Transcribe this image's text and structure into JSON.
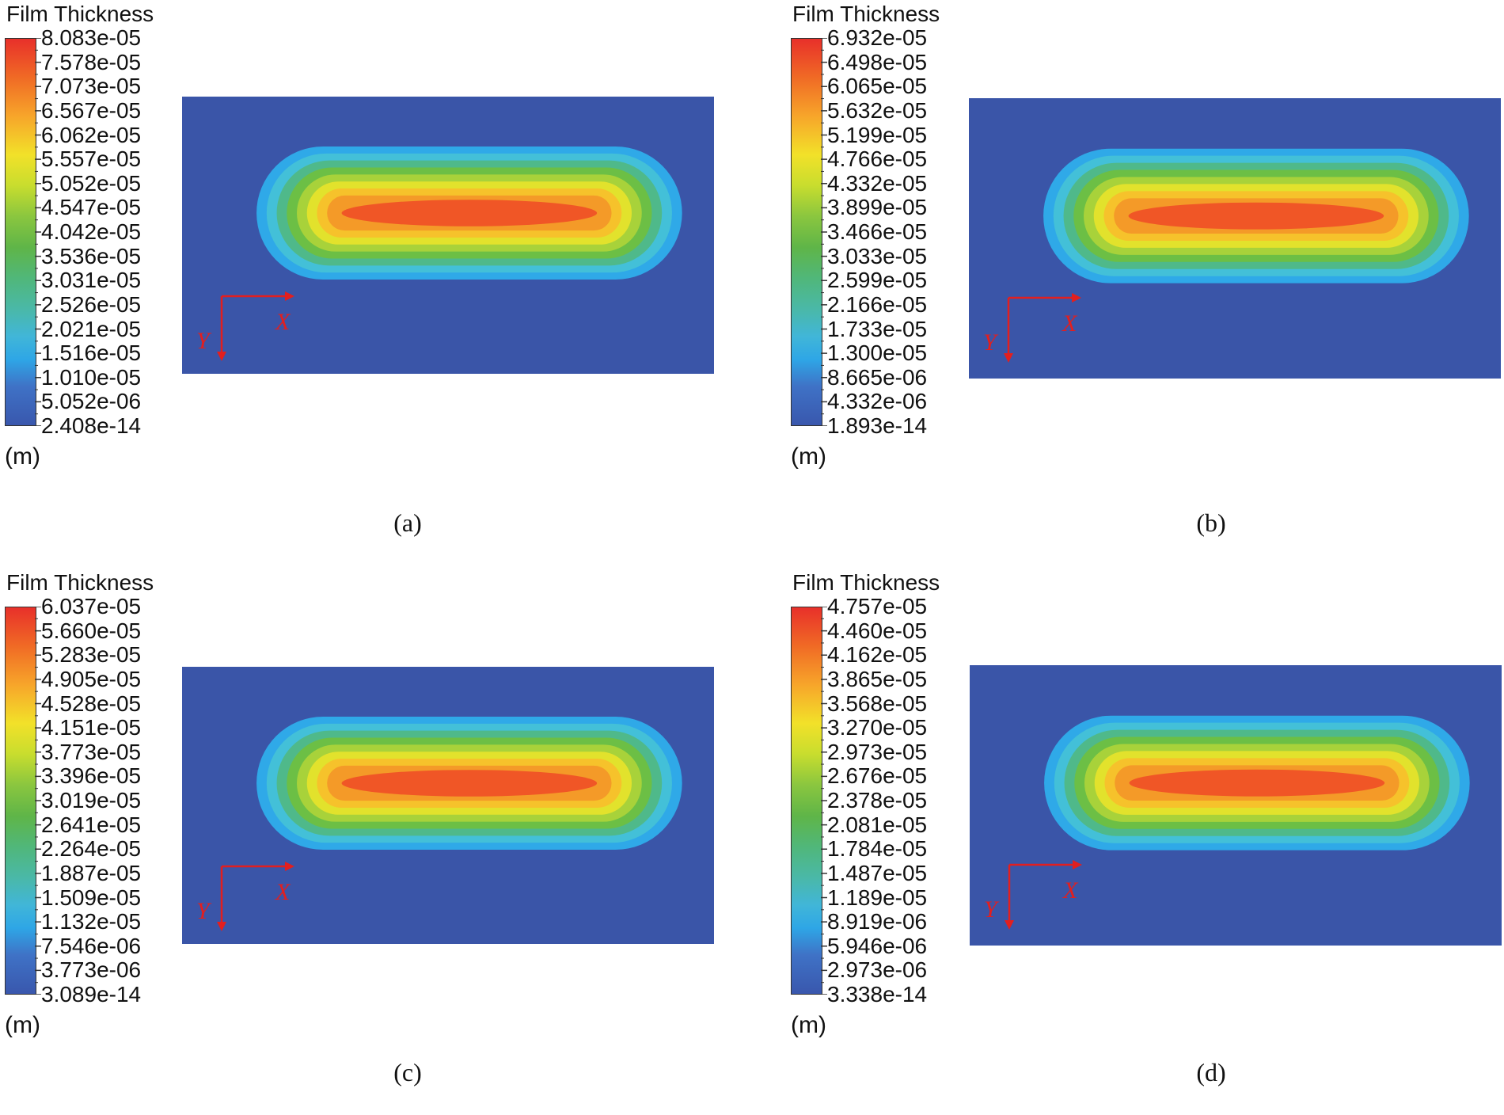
{
  "legend": {
    "title": "Film Thickness",
    "unit": "(m)"
  },
  "axes": {
    "x_label": "X",
    "y_label": "Y",
    "color": "#e21f1f"
  },
  "panels": [
    {
      "caption": "(a)",
      "ticks": [
        "8.083e-05",
        "7.578e-05",
        "7.073e-05",
        "6.567e-05",
        "6.062e-05",
        "5.557e-05",
        "5.052e-05",
        "4.547e-05",
        "4.042e-05",
        "3.536e-05",
        "3.031e-05",
        "2.526e-05",
        "2.021e-05",
        "1.516e-05",
        "1.010e-05",
        "5.052e-06",
        "2.408e-14"
      ]
    },
    {
      "caption": "(b)",
      "ticks": [
        "6.932e-05",
        "6.498e-05",
        "6.065e-05",
        "5.632e-05",
        "5.199e-05",
        "4.766e-05",
        "4.332e-05",
        "3.899e-05",
        "3.466e-05",
        "3.033e-05",
        "2.599e-05",
        "2.166e-05",
        "1.733e-05",
        "1.300e-05",
        "8.665e-06",
        "4.332e-06",
        "1.893e-14"
      ]
    },
    {
      "caption": "(c)",
      "ticks": [
        "6.037e-05",
        "5.660e-05",
        "5.283e-05",
        "4.905e-05",
        "4.528e-05",
        "4.151e-05",
        "3.773e-05",
        "3.396e-05",
        "3.019e-05",
        "2.641e-05",
        "2.264e-05",
        "1.887e-05",
        "1.509e-05",
        "1.132e-05",
        "7.546e-06",
        "3.773e-06",
        "3.089e-14"
      ]
    },
    {
      "caption": "(d)",
      "ticks": [
        "4.757e-05",
        "4.460e-05",
        "4.162e-05",
        "3.865e-05",
        "3.568e-05",
        "3.270e-05",
        "2.973e-05",
        "2.676e-05",
        "2.378e-05",
        "2.081e-05",
        "1.784e-05",
        "1.487e-05",
        "1.189e-05",
        "8.919e-06",
        "5.946e-06",
        "2.973e-06",
        "3.338e-14"
      ]
    }
  ]
}
